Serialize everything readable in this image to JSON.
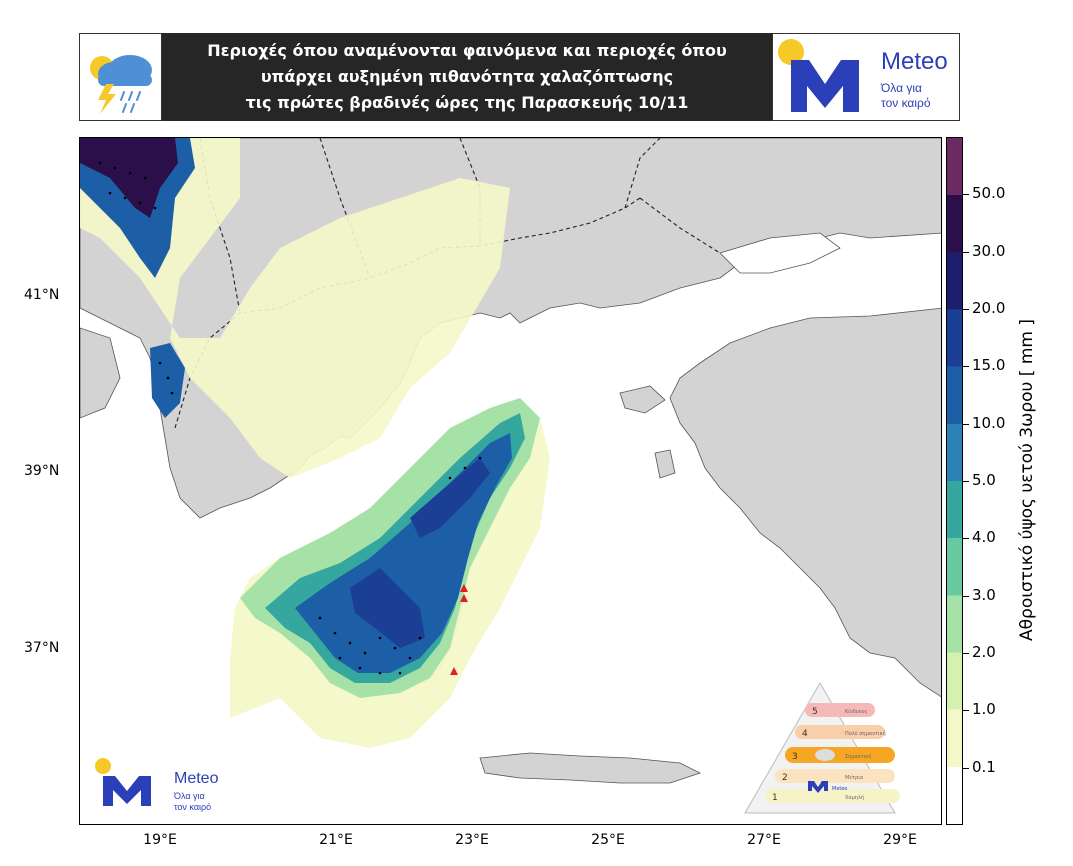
{
  "header": {
    "title_lines": [
      "Περιοχές όπου αναμένονται φαινόμενα και περιοχές όπου",
      "υπάρχει αυξημένη πιθανότητα χαλαζόπτωσης",
      "τις πρώτες βραδινές ώρες της Παρασκευής 10/11"
    ],
    "weather_icon": "thunderstorm-cloud-icon"
  },
  "logo": {
    "brand": "Meteo",
    "tagline_1": "Όλα για",
    "tagline_2": "τον καιρό"
  },
  "map": {
    "lat_labels": [
      "41°N",
      "39°N",
      "37°N"
    ],
    "lon_labels": [
      "19°E",
      "21°E",
      "23°E",
      "25°E",
      "27°E",
      "29°E"
    ]
  },
  "colorbar": {
    "title": "Αθροιστικό ύψος υετού 3ωρου [ mm ]",
    "ticks": [
      "50.0",
      "30.0",
      "20.0",
      "15.0",
      "10.0",
      "5.0",
      "4.0",
      "3.0",
      "2.0",
      "1.0",
      "0.1"
    ],
    "colors": [
      "#ffffff",
      "#f4f8c8",
      "#d6f0b0",
      "#a6e2a8",
      "#66c9a0",
      "#35a79e",
      "#2c82b4",
      "#1d5fa6",
      "#1c3f96",
      "#1d1f6e",
      "#2b0f4a",
      "#6b2a63"
    ]
  },
  "warning_scale": {
    "levels": [
      "1",
      "2",
      "3",
      "4",
      "5"
    ],
    "labels": [
      "Κίνδυνος",
      "Πολύ σημαντική",
      "Σημαντική",
      "Μέτρια",
      "Χαμηλή"
    ],
    "footer": "Meteo"
  }
}
